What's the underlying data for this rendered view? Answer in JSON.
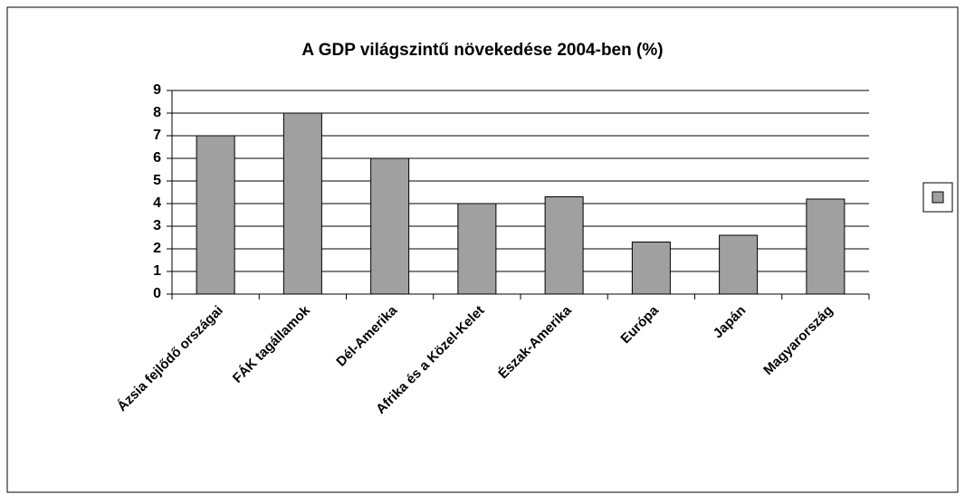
{
  "chart_data": {
    "type": "bar",
    "title": "A GDP világszintű növekedése 2004-ben (%)",
    "categories": [
      "Ázsia fejlődő országai",
      "FÁK tagállamok",
      "Dél-Amerika",
      "Afrika és a Közel-Kelet",
      "Észak-Amerika",
      "Európa",
      "Japán",
      "Magyarország"
    ],
    "values": [
      7,
      8,
      6,
      4,
      4.3,
      2.3,
      2.6,
      4.2
    ],
    "color": "#a0a0a0",
    "ylim": [
      0,
      9
    ],
    "yticks": [
      0,
      1,
      2,
      3,
      4,
      5,
      6,
      7,
      8,
      9
    ],
    "grid": true,
    "legend": "right"
  }
}
